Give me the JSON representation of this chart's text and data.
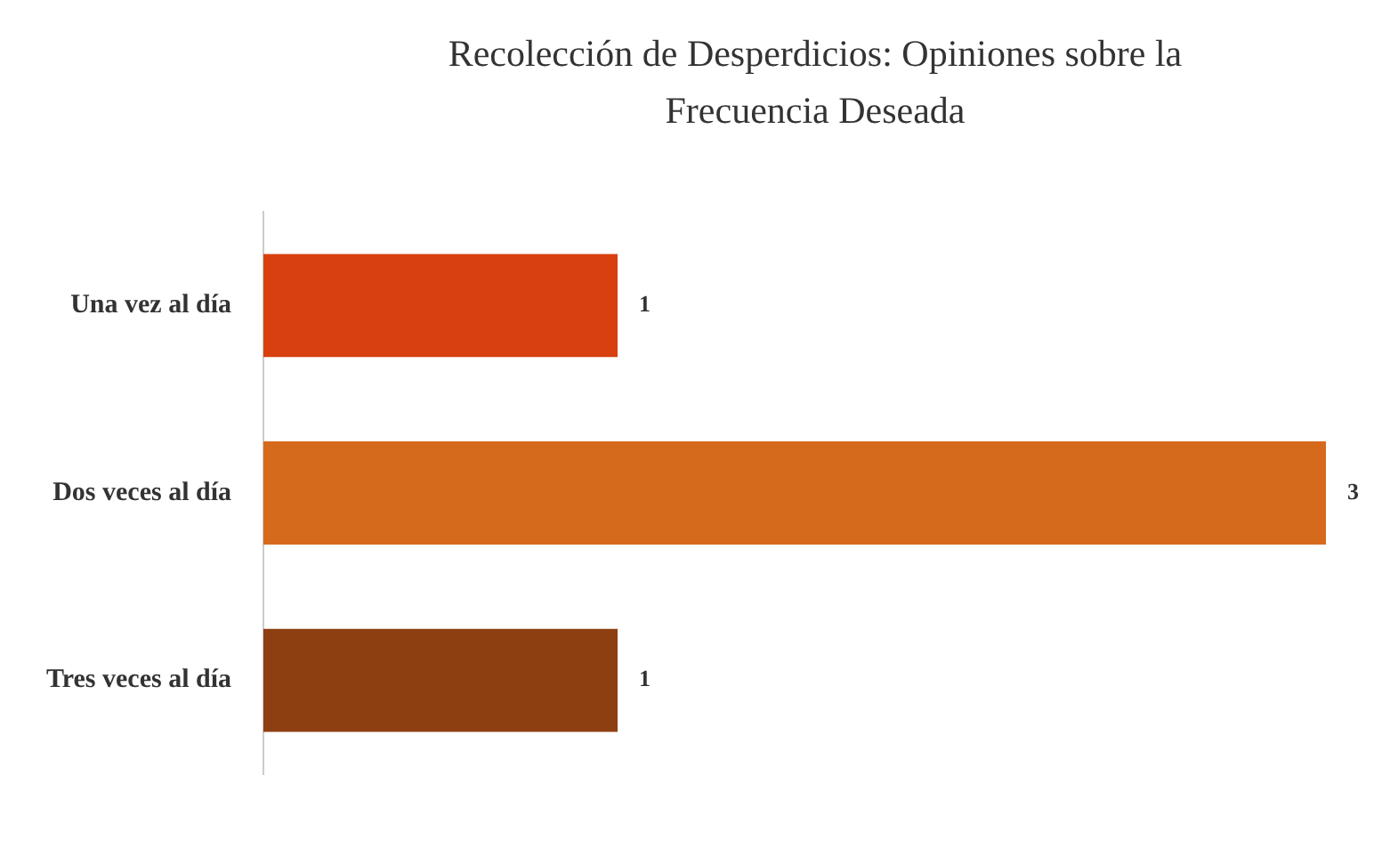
{
  "chart_data": {
    "type": "bar",
    "orientation": "horizontal",
    "title": "Recolección de Desperdicios: Opiniones sobre la Frecuencia Deseada",
    "categories": [
      "Una vez al día",
      "Dos veces al día",
      "Tres veces al día"
    ],
    "values": [
      1,
      3,
      1
    ],
    "colors": [
      "#d8400f",
      "#d66a1c",
      "#8e3f12"
    ],
    "xlim": [
      0,
      3
    ],
    "tick_labels": "y",
    "grid": false,
    "legend": false,
    "data_labels": true
  }
}
